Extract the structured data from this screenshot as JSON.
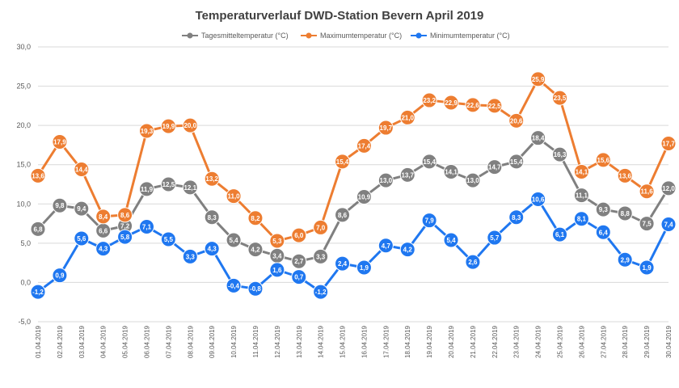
{
  "chart_data": {
    "type": "line",
    "title": "Temperaturverlauf DWD-Station Bevern April 2019",
    "xlabel": "",
    "ylabel": "",
    "ylim": [
      -5,
      30
    ],
    "ytick_step": 5,
    "ytick_labels": [
      "-5,0",
      "0,0",
      "5,0",
      "10,0",
      "15,0",
      "20,0",
      "25,0",
      "30,0"
    ],
    "legend_position": "top",
    "grid": true,
    "categories": [
      "01.04.2019",
      "02.04.2019",
      "03.04.2019",
      "04.04.2019",
      "05.04.2019",
      "06.04.2019",
      "07.04.2019",
      "08.04.2019",
      "09.04.2019",
      "10.04.2019",
      "11.04.2019",
      "12.04.2019",
      "13.04.2019",
      "14.04.2019",
      "15.04.2019",
      "16.04.2019",
      "17.04.2019",
      "18.04.2019",
      "19.04.2019",
      "20.04.2019",
      "21.04.2019",
      "22.04.2019",
      "23.04.2019",
      "24.04.2019",
      "25.04.2019",
      "26.04.2019",
      "27.04.2019",
      "28.04.2019",
      "29.04.2019",
      "30.04.2019"
    ],
    "series": [
      {
        "name": "Tagesmitteltemperatur (°C)",
        "color": "#808080",
        "values": [
          6.8,
          9.8,
          9.4,
          6.6,
          7.2,
          11.9,
          12.5,
          12.1,
          8.3,
          5.4,
          4.2,
          3.4,
          2.7,
          3.3,
          8.6,
          10.9,
          13.0,
          13.7,
          15.4,
          14.1,
          13.0,
          14.7,
          15.4,
          18.4,
          16.3,
          11.1,
          9.3,
          8.8,
          7.5,
          12.0
        ],
        "labels": [
          "6,8",
          "9,8",
          "9,4",
          "6,6",
          "7,2",
          "11,9",
          "12,5",
          "12,1",
          "8,3",
          "5,4",
          "4,2",
          "3,4",
          "2,7",
          "3,3",
          "8,6",
          "10,9",
          "13,0",
          "13,7",
          "15,4",
          "14,1",
          "13,0",
          "14,7",
          "15,4",
          "18,4",
          "16,3",
          "11,1",
          "9,3",
          "8,8",
          "7,5",
          "12,0"
        ]
      },
      {
        "name": "Maximumtemperatur (°C)",
        "color": "#ED7D31",
        "values": [
          13.6,
          17.9,
          14.4,
          8.4,
          8.6,
          19.3,
          19.9,
          20.0,
          13.2,
          11.0,
          8.2,
          5.3,
          6.0,
          7.0,
          15.4,
          17.4,
          19.7,
          21.0,
          23.2,
          22.9,
          22.6,
          22.5,
          20.6,
          25.9,
          23.5,
          14.1,
          15.6,
          13.6,
          11.6,
          17.7
        ],
        "labels": [
          "13,6",
          "17,9",
          "14,4",
          "8,4",
          "8,6",
          "19,3",
          "19,9",
          "20,0",
          "13,2",
          "11,0",
          "8,2",
          "5,3",
          "6,0",
          "7,0",
          "15,4",
          "17,4",
          "19,7",
          "21,0",
          "23,2",
          "22,9",
          "22,6",
          "22,5",
          "20,6",
          "25,9",
          "23,5",
          "14,1",
          "15,6",
          "13,6",
          "11,6",
          "17,7"
        ]
      },
      {
        "name": "Minimumtemperatur (°C)",
        "color": "#1F77F0",
        "values": [
          -1.2,
          0.9,
          5.6,
          4.3,
          5.8,
          7.1,
          5.5,
          3.3,
          4.3,
          -0.4,
          -0.8,
          1.6,
          0.7,
          -1.2,
          2.4,
          1.9,
          4.7,
          4.2,
          7.9,
          5.4,
          2.6,
          5.7,
          8.3,
          10.6,
          6.1,
          8.1,
          6.4,
          2.9,
          1.9,
          7.4
        ],
        "labels": [
          "-1,2",
          "0,9",
          "5,6",
          "4,3",
          "5,8",
          "7,1",
          "5,5",
          "3,3",
          "4,3",
          "-0,4",
          "-0,8",
          "1,6",
          "0,7",
          "-1,2",
          "2,4",
          "1,9",
          "4,7",
          "4,2",
          "7,9",
          "5,4",
          "2,6",
          "5,7",
          "8,3",
          "10,6",
          "6,1",
          "8,1",
          "6,4",
          "2,9",
          "1,9",
          "7,4"
        ]
      }
    ]
  }
}
